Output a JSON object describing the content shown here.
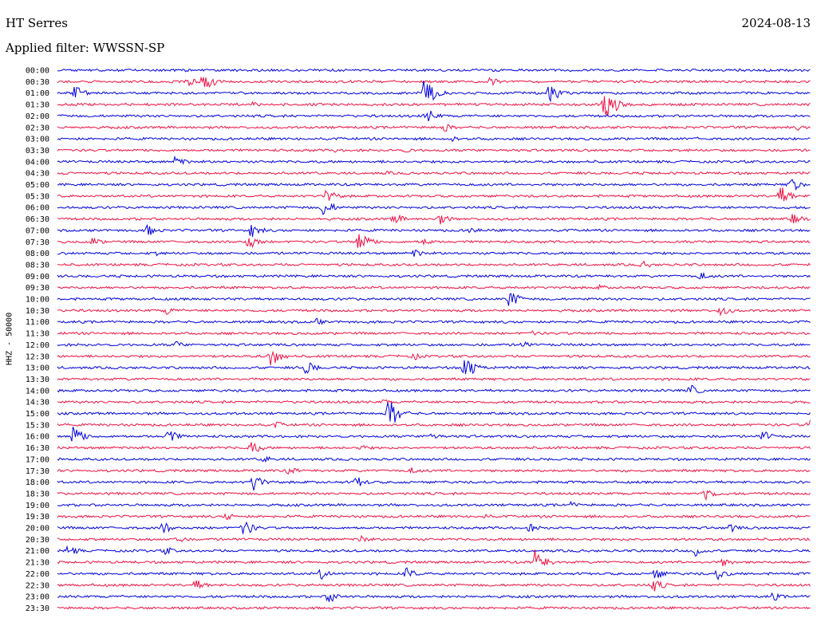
{
  "header": {
    "station": "HT Serres",
    "date": "2024-08-13",
    "filter": "Applied filter: WWSSN-SP"
  },
  "channel_label": "HHZ - 50000",
  "colors": {
    "blue": "#0000dd",
    "red": "#ee1144"
  },
  "chart_data": {
    "type": "line",
    "title": "HT Serres",
    "subtitle": "Applied filter: WWSSN-SP",
    "ylabel": "HHZ - 50000",
    "grid": false,
    "legend": "none",
    "row_times": [
      "00:00",
      "00:30",
      "01:00",
      "01:30",
      "02:00",
      "02:30",
      "03:00",
      "03:30",
      "04:00",
      "04:30",
      "05:00",
      "05:30",
      "06:00",
      "06:30",
      "07:00",
      "07:30",
      "08:00",
      "08:30",
      "09:00",
      "09:30",
      "10:00",
      "10:30",
      "11:00",
      "11:30",
      "12:00",
      "12:30",
      "13:00",
      "13:30",
      "14:00",
      "14:30",
      "15:00",
      "15:30",
      "16:00",
      "16:30",
      "17:00",
      "17:30",
      "18:00",
      "18:30",
      "19:00",
      "19:30",
      "20:00",
      "20:30",
      "21:00",
      "21:30",
      "22:00",
      "22:30",
      "23:00",
      "23:30"
    ],
    "row_colors": [
      "blue",
      "red"
    ],
    "x_range_minutes": [
      0,
      30
    ],
    "events": [
      {
        "row": 0,
        "minute": 4.9,
        "amplitude": 4
      },
      {
        "row": 0,
        "minute": 11.0,
        "amplitude": 3
      },
      {
        "row": 1,
        "minute": 5.2,
        "amplitude": 6
      },
      {
        "row": 1,
        "minute": 5.8,
        "amplitude": 14
      },
      {
        "row": 1,
        "minute": 17.2,
        "amplitude": 6
      },
      {
        "row": 2,
        "minute": 0.7,
        "amplitude": 10
      },
      {
        "row": 2,
        "minute": 14.6,
        "amplitude": 22
      },
      {
        "row": 2,
        "minute": 19.6,
        "amplitude": 14
      },
      {
        "row": 3,
        "minute": 7.8,
        "amplitude": 4
      },
      {
        "row": 3,
        "minute": 21.8,
        "amplitude": 26
      },
      {
        "row": 4,
        "minute": 0.2,
        "amplitude": 3
      },
      {
        "row": 4,
        "minute": 14.7,
        "amplitude": 10
      },
      {
        "row": 5,
        "minute": 15.4,
        "amplitude": 6
      },
      {
        "row": 5,
        "minute": 29.5,
        "amplitude": 4
      },
      {
        "row": 6,
        "minute": 15.7,
        "amplitude": 4
      },
      {
        "row": 6,
        "minute": 25.5,
        "amplitude": 3
      },
      {
        "row": 7,
        "minute": 13.9,
        "amplitude": 4
      },
      {
        "row": 7,
        "minute": 11.0,
        "amplitude": 3
      },
      {
        "row": 8,
        "minute": 4.7,
        "amplitude": 8
      },
      {
        "row": 9,
        "minute": 0.3,
        "amplitude": 3
      },
      {
        "row": 9,
        "minute": 13.1,
        "amplitude": 3
      },
      {
        "row": 10,
        "minute": 29.2,
        "amplitude": 12
      },
      {
        "row": 11,
        "minute": 10.7,
        "amplitude": 10
      },
      {
        "row": 11,
        "minute": 28.8,
        "amplitude": 14
      },
      {
        "row": 12,
        "minute": 10.6,
        "amplitude": 12
      },
      {
        "row": 13,
        "minute": 13.4,
        "amplitude": 8
      },
      {
        "row": 13,
        "minute": 15.2,
        "amplitude": 8
      },
      {
        "row": 13,
        "minute": 29.3,
        "amplitude": 8
      },
      {
        "row": 14,
        "minute": 3.6,
        "amplitude": 8
      },
      {
        "row": 14,
        "minute": 7.7,
        "amplitude": 10
      },
      {
        "row": 14,
        "minute": 16.4,
        "amplitude": 6
      },
      {
        "row": 15,
        "minute": 1.4,
        "amplitude": 6
      },
      {
        "row": 15,
        "minute": 7.6,
        "amplitude": 10
      },
      {
        "row": 15,
        "minute": 12.0,
        "amplitude": 16
      },
      {
        "row": 15,
        "minute": 14.6,
        "amplitude": 6
      },
      {
        "row": 16,
        "minute": 3.9,
        "amplitude": 4
      },
      {
        "row": 16,
        "minute": 14.2,
        "amplitude": 6
      },
      {
        "row": 17,
        "minute": 23.3,
        "amplitude": 6
      },
      {
        "row": 18,
        "minute": 25.6,
        "amplitude": 6
      },
      {
        "row": 19,
        "minute": 21.6,
        "amplitude": 4
      },
      {
        "row": 20,
        "minute": 18.0,
        "amplitude": 12
      },
      {
        "row": 21,
        "minute": 4.3,
        "amplitude": 6
      },
      {
        "row": 21,
        "minute": 26.4,
        "amplitude": 8
      },
      {
        "row": 22,
        "minute": 10.3,
        "amplitude": 5
      },
      {
        "row": 23,
        "minute": 18.9,
        "amplitude": 4
      },
      {
        "row": 24,
        "minute": 4.7,
        "amplitude": 5
      },
      {
        "row": 24,
        "minute": 18.5,
        "amplitude": 5
      },
      {
        "row": 25,
        "minute": 8.5,
        "amplitude": 14
      },
      {
        "row": 25,
        "minute": 14.2,
        "amplitude": 5
      },
      {
        "row": 26,
        "minute": 9.9,
        "amplitude": 10
      },
      {
        "row": 26,
        "minute": 16.2,
        "amplitude": 18
      },
      {
        "row": 28,
        "minute": 25.2,
        "amplitude": 8
      },
      {
        "row": 29,
        "minute": 13.0,
        "amplitude": 4
      },
      {
        "row": 30,
        "minute": 13.2,
        "amplitude": 22
      },
      {
        "row": 31,
        "minute": 8.7,
        "amplitude": 5
      },
      {
        "row": 31,
        "minute": 29.9,
        "amplitude": 8
      },
      {
        "row": 32,
        "minute": 0.6,
        "amplitude": 16
      },
      {
        "row": 32,
        "minute": 4.4,
        "amplitude": 10
      },
      {
        "row": 32,
        "minute": 14.9,
        "amplitude": 6
      },
      {
        "row": 32,
        "minute": 28.1,
        "amplitude": 8
      },
      {
        "row": 33,
        "minute": 7.7,
        "amplitude": 10
      },
      {
        "row": 33,
        "minute": 12.1,
        "amplitude": 5
      },
      {
        "row": 34,
        "minute": 8.2,
        "amplitude": 5
      },
      {
        "row": 35,
        "minute": 9.2,
        "amplitude": 6
      },
      {
        "row": 35,
        "minute": 14.1,
        "amplitude": 5
      },
      {
        "row": 36,
        "minute": 7.8,
        "amplitude": 12
      },
      {
        "row": 36,
        "minute": 11.9,
        "amplitude": 8
      },
      {
        "row": 37,
        "minute": 25.8,
        "amplitude": 10
      },
      {
        "row": 38,
        "minute": 20.4,
        "amplitude": 5
      },
      {
        "row": 39,
        "minute": 6.7,
        "amplitude": 6
      },
      {
        "row": 39,
        "minute": 17.0,
        "amplitude": 4
      },
      {
        "row": 40,
        "minute": 4.2,
        "amplitude": 8
      },
      {
        "row": 40,
        "minute": 7.4,
        "amplitude": 12
      },
      {
        "row": 40,
        "minute": 18.8,
        "amplitude": 6
      },
      {
        "row": 40,
        "minute": 26.8,
        "amplitude": 6
      },
      {
        "row": 41,
        "minute": 4.7,
        "amplitude": 6
      },
      {
        "row": 41,
        "minute": 12.1,
        "amplitude": 6
      },
      {
        "row": 42,
        "minute": 0.4,
        "amplitude": 8
      },
      {
        "row": 42,
        "minute": 4.3,
        "amplitude": 6
      },
      {
        "row": 42,
        "minute": 25.4,
        "amplitude": 8
      },
      {
        "row": 43,
        "minute": 19.0,
        "amplitude": 18
      },
      {
        "row": 43,
        "minute": 26.5,
        "amplitude": 6
      },
      {
        "row": 44,
        "minute": 10.5,
        "amplitude": 8
      },
      {
        "row": 44,
        "minute": 13.9,
        "amplitude": 8
      },
      {
        "row": 44,
        "minute": 23.8,
        "amplitude": 8
      },
      {
        "row": 44,
        "minute": 26.3,
        "amplitude": 8
      },
      {
        "row": 45,
        "minute": 5.5,
        "amplitude": 8
      },
      {
        "row": 45,
        "minute": 23.7,
        "amplitude": 10
      },
      {
        "row": 46,
        "minute": 10.8,
        "amplitude": 9
      },
      {
        "row": 46,
        "minute": 28.5,
        "amplitude": 6
      }
    ]
  }
}
